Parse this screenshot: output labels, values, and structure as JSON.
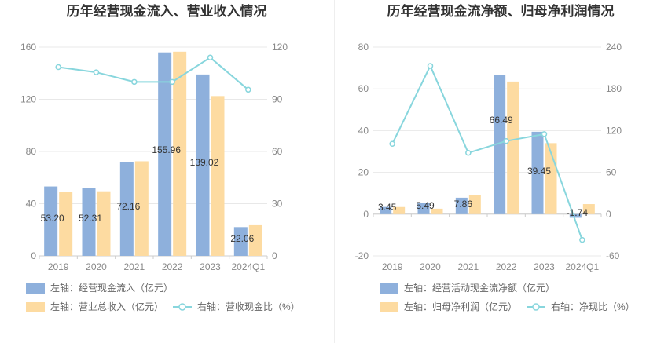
{
  "chart_data": [
    {
      "type": "bar",
      "title": "历年经营现金流入、营业收入情况",
      "categories": [
        "2019",
        "2020",
        "2021",
        "2022",
        "2023",
        "2024Q1"
      ],
      "y_left": {
        "min": 0,
        "max": 160,
        "ticks": [
          "0",
          "40",
          "80",
          "120",
          "160"
        ]
      },
      "y_right": {
        "min": 0,
        "max": 120,
        "ticks": [
          "0",
          "30",
          "60",
          "90",
          "120"
        ]
      },
      "series": [
        {
          "name": "左轴：经营现金流入（亿元）",
          "kind": "bar",
          "axis": "left",
          "color": "#8eb0dc",
          "values": [
            53.2,
            52.31,
            72.16,
            155.96,
            139.02,
            22.06
          ],
          "labels": [
            "53.20",
            "52.31",
            "72.16",
            "155.96",
            "139.02",
            "22.06"
          ]
        },
        {
          "name": "左轴：营业总收入（亿元）",
          "kind": "bar",
          "axis": "left",
          "color": "#fddba1",
          "values": [
            49.0,
            49.5,
            72.5,
            156.5,
            122.5,
            23.5
          ]
        },
        {
          "name": "右轴：营收现金比（%）",
          "kind": "line",
          "axis": "right",
          "color": "#88d6dd",
          "values": [
            108.5,
            105.5,
            100.0,
            100.0,
            114.0,
            95.5
          ]
        }
      ],
      "legend": "bottom",
      "grid": true
    },
    {
      "type": "bar",
      "title": "历年经营现金流净额、归母净利润情况",
      "categories": [
        "2019",
        "2020",
        "2021",
        "2022",
        "2023",
        "2024Q1"
      ],
      "y_left": {
        "min": -20,
        "max": 80,
        "ticks": [
          "-20",
          "0",
          "20",
          "40",
          "60",
          "80"
        ]
      },
      "y_right": {
        "min": -60,
        "max": 240,
        "ticks": [
          "-60",
          "0",
          "60",
          "120",
          "180",
          "240"
        ]
      },
      "series": [
        {
          "name": "左轴：经营活动现金流净额（亿元）",
          "kind": "bar",
          "axis": "left",
          "color": "#8eb0dc",
          "values": [
            3.45,
            5.49,
            7.86,
            66.49,
            39.45,
            -1.74
          ],
          "labels": [
            "3.45",
            "5.49",
            "7.86",
            "66.49",
            "39.45",
            "-1.74"
          ]
        },
        {
          "name": "左轴：归母净利润（亿元）",
          "kind": "bar",
          "axis": "left",
          "color": "#fddba1",
          "values": [
            3.4,
            2.6,
            9.1,
            63.5,
            34.0,
            4.8
          ]
        },
        {
          "name": "右轴：净现比（%）",
          "kind": "line",
          "axis": "right",
          "color": "#88d6dd",
          "values": [
            101.0,
            213.0,
            88.0,
            105.0,
            115.0,
            -37.0
          ]
        }
      ],
      "legend": "bottom",
      "grid": true
    }
  ]
}
